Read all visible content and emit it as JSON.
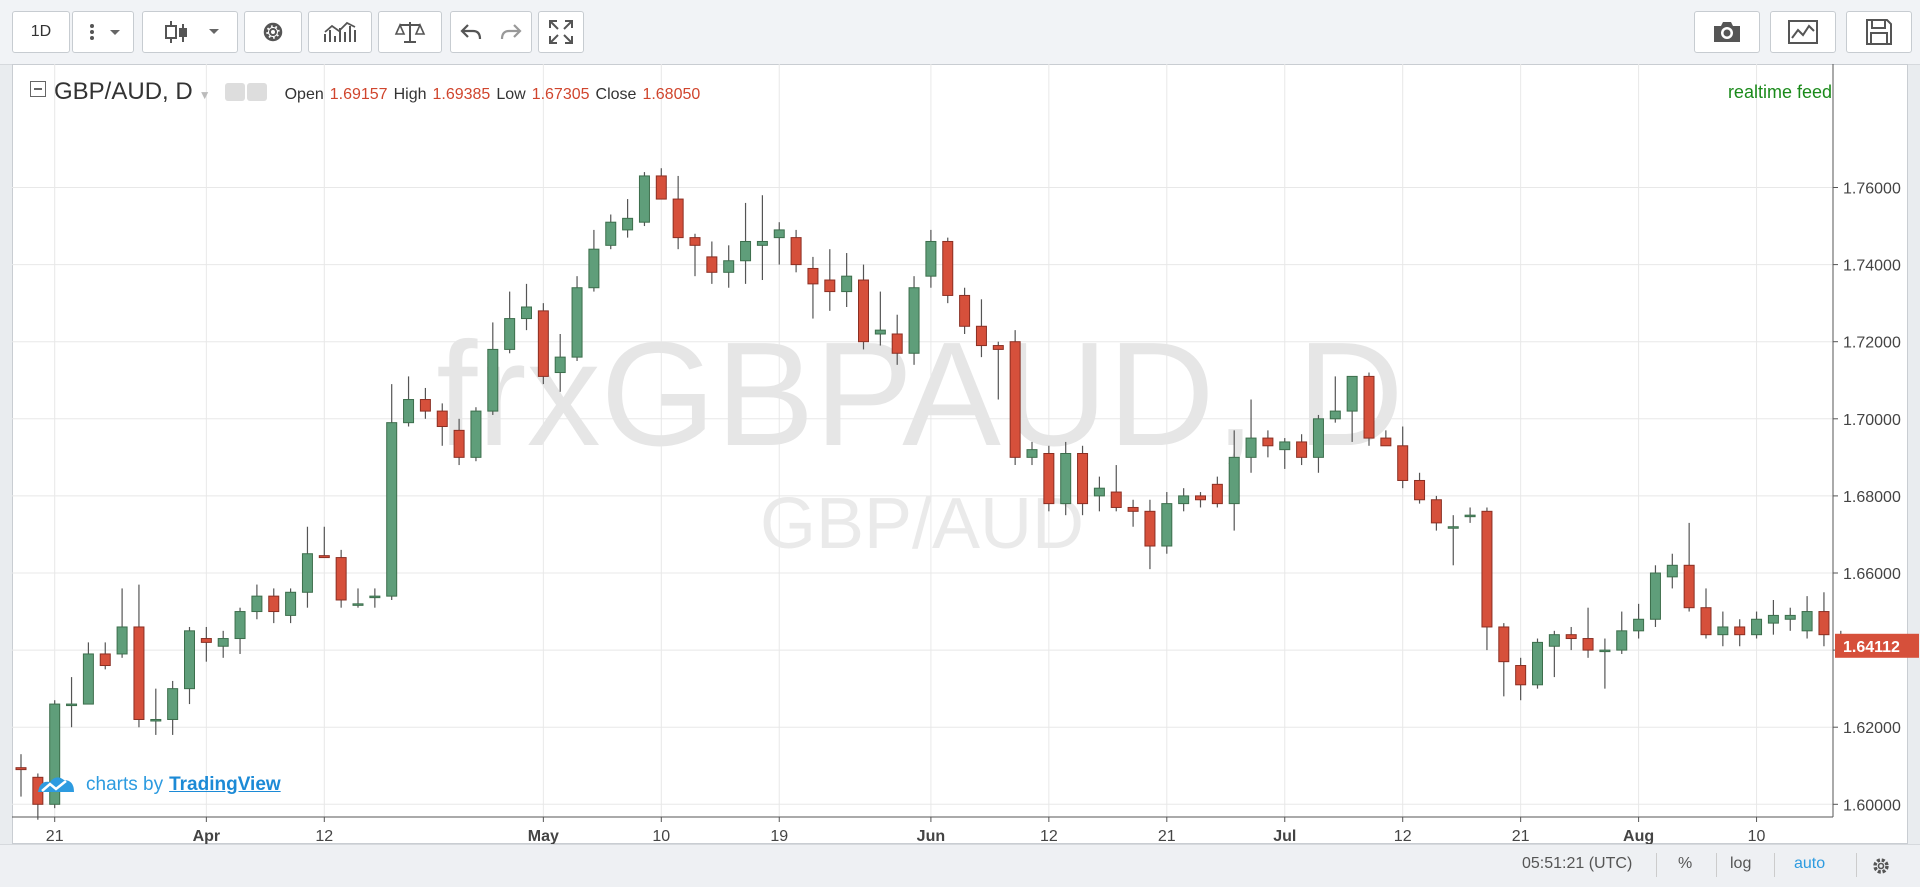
{
  "toolbar": {
    "interval_label": "1D",
    "icons": [
      "more-vertical-icon",
      "candles-icon",
      "chevron-down-icon",
      "gear-icon",
      "indicators-icon",
      "compare-icon",
      "undo-icon",
      "redo-icon",
      "fullscreen-icon",
      "camera-icon",
      "chart-properties-icon",
      "save-icon"
    ]
  },
  "legend": {
    "symbol": "GBP/AUD, D",
    "open_label": "Open",
    "open_value": "1.69157",
    "high_label": "High",
    "high_value": "1.69385",
    "low_label": "Low",
    "low_value": "1.67305",
    "close_label": "Close",
    "close_value": "1.68050"
  },
  "feed_label": "realtime feed",
  "watermark": {
    "main": "frxGBPAUD, D",
    "sub": "GBP/AUD"
  },
  "branding": {
    "prefix": "charts by",
    "name": "TradingView"
  },
  "bottom": {
    "time": "05:51:21 (UTC)",
    "percent": "%",
    "log": "log",
    "auto": "auto"
  },
  "colors": {
    "up": "#5f9e7a",
    "down": "#d6503b",
    "up_border": "#3c6e4c",
    "down_border": "#8b2f23",
    "last_price_bg": "#d6503b",
    "accent": "#2d9be0"
  },
  "chart_data": {
    "type": "candlestick",
    "ylim": [
      1.58,
      1.77
    ],
    "yticks": [
      "1.76000",
      "1.74000",
      "1.72000",
      "1.70000",
      "1.68000",
      "1.66000",
      "1.64000",
      "1.62000",
      "1.60000"
    ],
    "last_price": "1.64112",
    "x_labels": [
      {
        "label": "21",
        "index": 2
      },
      {
        "label": "Apr",
        "index": 11
      },
      {
        "label": "12",
        "index": 18
      },
      {
        "label": "May",
        "index": 31
      },
      {
        "label": "10",
        "index": 38
      },
      {
        "label": "19",
        "index": 45
      },
      {
        "label": "Jun",
        "index": 54
      },
      {
        "label": "12",
        "index": 61
      },
      {
        "label": "21",
        "index": 68
      },
      {
        "label": "Jul",
        "index": 75
      },
      {
        "label": "12",
        "index": 82
      },
      {
        "label": "21",
        "index": 89
      },
      {
        "label": "Aug",
        "index": 96
      },
      {
        "label": "10",
        "index": 103
      }
    ],
    "candles": [
      [
        1.6095,
        1.613,
        1.602,
        1.609
      ],
      [
        1.607,
        1.608,
        1.596,
        1.6
      ],
      [
        1.6,
        1.627,
        1.599,
        1.626
      ],
      [
        1.626,
        1.633,
        1.62,
        1.626
      ],
      [
        1.626,
        1.642,
        1.626,
        1.639
      ],
      [
        1.639,
        1.642,
        1.635,
        1.636
      ],
      [
        1.639,
        1.656,
        1.638,
        1.646
      ],
      [
        1.646,
        1.657,
        1.62,
        1.622
      ],
      [
        1.622,
        1.63,
        1.618,
        1.622
      ],
      [
        1.622,
        1.632,
        1.618,
        1.63
      ],
      [
        1.63,
        1.646,
        1.626,
        1.645
      ],
      [
        1.643,
        1.646,
        1.637,
        1.642
      ],
      [
        1.641,
        1.645,
        1.638,
        1.643
      ],
      [
        1.643,
        1.651,
        1.639,
        1.65
      ],
      [
        1.65,
        1.657,
        1.648,
        1.654
      ],
      [
        1.654,
        1.656,
        1.647,
        1.65
      ],
      [
        1.649,
        1.656,
        1.647,
        1.655
      ],
      [
        1.655,
        1.672,
        1.651,
        1.665
      ],
      [
        1.6645,
        1.672,
        1.664,
        1.664
      ],
      [
        1.664,
        1.666,
        1.651,
        1.653
      ],
      [
        1.652,
        1.656,
        1.651,
        1.652
      ],
      [
        1.654,
        1.656,
        1.651,
        1.654
      ],
      [
        1.654,
        1.709,
        1.653,
        1.699
      ],
      [
        1.699,
        1.711,
        1.698,
        1.705
      ],
      [
        1.705,
        1.708,
        1.7,
        1.702
      ],
      [
        1.702,
        1.704,
        1.693,
        1.698
      ],
      [
        1.697,
        1.7,
        1.688,
        1.69
      ],
      [
        1.69,
        1.703,
        1.689,
        1.702
      ],
      [
        1.702,
        1.725,
        1.701,
        1.718
      ],
      [
        1.718,
        1.733,
        1.717,
        1.726
      ],
      [
        1.726,
        1.735,
        1.723,
        1.729
      ],
      [
        1.728,
        1.73,
        1.709,
        1.711
      ],
      [
        1.712,
        1.722,
        1.707,
        1.716
      ],
      [
        1.716,
        1.737,
        1.715,
        1.734
      ],
      [
        1.734,
        1.749,
        1.733,
        1.744
      ],
      [
        1.745,
        1.753,
        1.744,
        1.751
      ],
      [
        1.749,
        1.757,
        1.747,
        1.752
      ],
      [
        1.751,
        1.764,
        1.75,
        1.763
      ],
      [
        1.763,
        1.765,
        1.757,
        1.757
      ],
      [
        1.757,
        1.763,
        1.744,
        1.747
      ],
      [
        1.747,
        1.748,
        1.737,
        1.745
      ],
      [
        1.742,
        1.746,
        1.735,
        1.738
      ],
      [
        1.738,
        1.745,
        1.734,
        1.741
      ],
      [
        1.741,
        1.756,
        1.735,
        1.746
      ],
      [
        1.745,
        1.758,
        1.736,
        1.746
      ],
      [
        1.747,
        1.751,
        1.74,
        1.749
      ],
      [
        1.747,
        1.749,
        1.738,
        1.74
      ],
      [
        1.739,
        1.742,
        1.726,
        1.735
      ],
      [
        1.736,
        1.744,
        1.728,
        1.733
      ],
      [
        1.733,
        1.743,
        1.729,
        1.737
      ],
      [
        1.736,
        1.74,
        1.718,
        1.72
      ],
      [
        1.722,
        1.733,
        1.719,
        1.723
      ],
      [
        1.722,
        1.727,
        1.714,
        1.717
      ],
      [
        1.717,
        1.737,
        1.714,
        1.734
      ],
      [
        1.737,
        1.749,
        1.734,
        1.746
      ],
      [
        1.746,
        1.747,
        1.73,
        1.732
      ],
      [
        1.732,
        1.734,
        1.722,
        1.724
      ],
      [
        1.724,
        1.731,
        1.716,
        1.719
      ],
      [
        1.719,
        1.72,
        1.705,
        1.718
      ],
      [
        1.72,
        1.723,
        1.688,
        1.69
      ],
      [
        1.69,
        1.694,
        1.688,
        1.692
      ],
      [
        1.691,
        1.693,
        1.676,
        1.678
      ],
      [
        1.678,
        1.694,
        1.675,
        1.691
      ],
      [
        1.691,
        1.693,
        1.675,
        1.678
      ],
      [
        1.68,
        1.685,
        1.676,
        1.682
      ],
      [
        1.681,
        1.688,
        1.676,
        1.677
      ],
      [
        1.677,
        1.679,
        1.672,
        1.676
      ],
      [
        1.676,
        1.679,
        1.661,
        1.667
      ],
      [
        1.667,
        1.681,
        1.665,
        1.678
      ],
      [
        1.678,
        1.682,
        1.676,
        1.68
      ],
      [
        1.68,
        1.681,
        1.677,
        1.679
      ],
      [
        1.683,
        1.685,
        1.677,
        1.678
      ],
      [
        1.678,
        1.697,
        1.671,
        1.69
      ],
      [
        1.69,
        1.705,
        1.686,
        1.695
      ],
      [
        1.695,
        1.697,
        1.69,
        1.693
      ],
      [
        1.692,
        1.695,
        1.687,
        1.694
      ],
      [
        1.694,
        1.696,
        1.688,
        1.69
      ],
      [
        1.69,
        1.701,
        1.686,
        1.7
      ],
      [
        1.7,
        1.711,
        1.699,
        1.702
      ],
      [
        1.702,
        1.711,
        1.694,
        1.711
      ],
      [
        1.711,
        1.712,
        1.693,
        1.695
      ],
      [
        1.695,
        1.697,
        1.693,
        1.693
      ],
      [
        1.693,
        1.698,
        1.682,
        1.684
      ],
      [
        1.684,
        1.686,
        1.678,
        1.679
      ],
      [
        1.679,
        1.68,
        1.671,
        1.673
      ],
      [
        1.672,
        1.675,
        1.662,
        1.672
      ],
      [
        1.675,
        1.677,
        1.673,
        1.675
      ],
      [
        1.676,
        1.677,
        1.64,
        1.646
      ],
      [
        1.646,
        1.647,
        1.628,
        1.637
      ],
      [
        1.636,
        1.638,
        1.627,
        1.631
      ],
      [
        1.631,
        1.643,
        1.63,
        1.642
      ],
      [
        1.641,
        1.645,
        1.633,
        1.644
      ],
      [
        1.644,
        1.646,
        1.64,
        1.643
      ],
      [
        1.643,
        1.651,
        1.638,
        1.64
      ],
      [
        1.64,
        1.643,
        1.63,
        1.64
      ],
      [
        1.64,
        1.65,
        1.639,
        1.645
      ],
      [
        1.645,
        1.652,
        1.643,
        1.648
      ],
      [
        1.648,
        1.662,
        1.646,
        1.66
      ],
      [
        1.659,
        1.665,
        1.656,
        1.662
      ],
      [
        1.662,
        1.673,
        1.65,
        1.651
      ],
      [
        1.651,
        1.656,
        1.643,
        1.644
      ],
      [
        1.644,
        1.65,
        1.641,
        1.646
      ],
      [
        1.646,
        1.648,
        1.641,
        1.644
      ],
      [
        1.644,
        1.65,
        1.643,
        1.648
      ],
      [
        1.647,
        1.653,
        1.644,
        1.649
      ],
      [
        1.648,
        1.651,
        1.645,
        1.649
      ],
      [
        1.645,
        1.654,
        1.643,
        1.65
      ],
      [
        1.65,
        1.655,
        1.641,
        1.644
      ],
      [
        1.644,
        1.645,
        1.64,
        1.641
      ]
    ]
  }
}
